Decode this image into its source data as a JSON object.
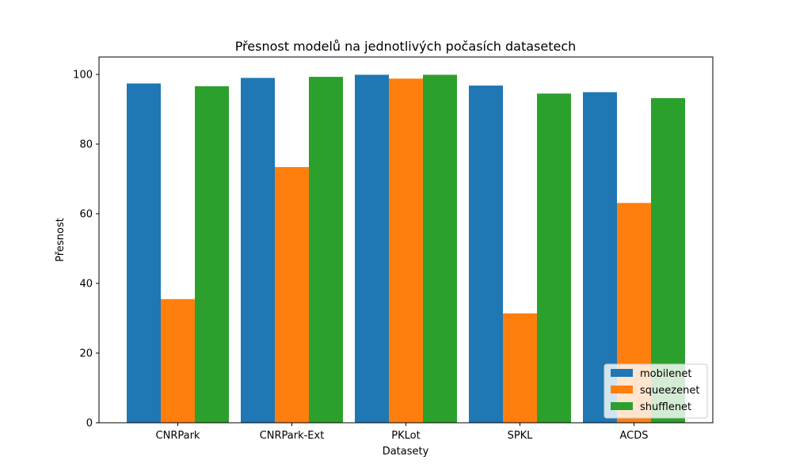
{
  "chart_data": {
    "type": "bar",
    "title": "Přesnost modelů na jednotlivých počasích datasetech",
    "xlabel": "Datasety",
    "ylabel": "Přesnost",
    "categories": [
      "CNRPark",
      "CNRPark-Ext",
      "PKLot",
      "SPKL",
      "ACDS"
    ],
    "series": [
      {
        "name": "mobilenet",
        "color": "#1f77b4",
        "values": [
          97.4,
          99.0,
          99.9,
          96.8,
          94.9
        ]
      },
      {
        "name": "squeezenet",
        "color": "#ff7f0e",
        "values": [
          35.5,
          73.4,
          98.8,
          31.4,
          63.1
        ]
      },
      {
        "name": "shufflenet",
        "color": "#2ca02c",
        "values": [
          96.6,
          99.3,
          99.9,
          94.5,
          93.2
        ]
      }
    ],
    "ylim": [
      0,
      105
    ],
    "yticks": [
      0,
      20,
      40,
      60,
      80,
      100
    ],
    "grid": false,
    "legend_position": "lower-right"
  }
}
